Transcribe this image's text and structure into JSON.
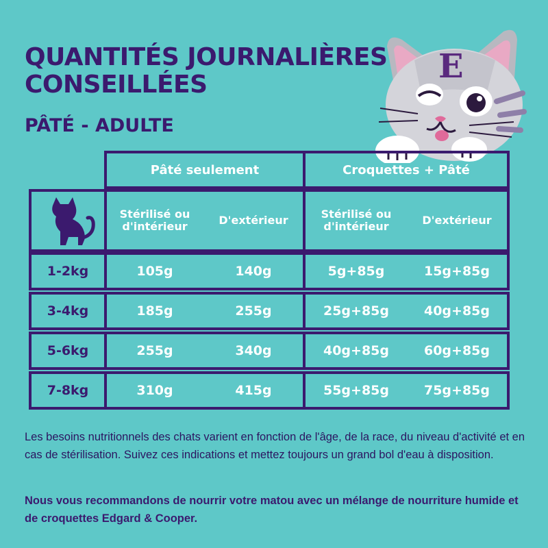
{
  "title": "QUANTITÉS JOURNALIÈRES CONSEILLÉES",
  "subtitle": "PÂTÉ - ADULTE",
  "table": {
    "group_headers": [
      "Pâté seulement",
      "Croquettes + Pâté"
    ],
    "sub_headers": [
      "Stérilisé ou d'intérieur",
      "D'extérieur",
      "Stérilisé ou d'intérieur",
      "D'extérieur"
    ],
    "rows": [
      {
        "weight": "1-2kg",
        "values": [
          "105g",
          "140g",
          "5g+85g",
          "15g+85g"
        ]
      },
      {
        "weight": "3-4kg",
        "values": [
          "185g",
          "255g",
          "25g+85g",
          "40g+85g"
        ]
      },
      {
        "weight": "5-6kg",
        "values": [
          "255g",
          "340g",
          "40g+85g",
          "60g+85g"
        ]
      },
      {
        "weight": "7-8kg",
        "values": [
          "310g",
          "415g",
          "55g+85g",
          "75g+85g"
        ]
      }
    ]
  },
  "paragraphs": {
    "info": "Les besoins nutritionnels des chats varient en fonction de l'âge, de la race, du niveau d'activité et en cas de stérilisation. Suivez ces indications et mettez toujours un grand bol d'eau à disposition.",
    "recommendation": "Nous vous recommandons de nourrir votre matou avec un mélange de nourriture humide et de croquettes Edgard & Cooper."
  },
  "icons": {
    "cat_silhouette": "cat-silhouette-icon",
    "mascot": "cat-mascot-illustration",
    "mascot_logo": "E"
  },
  "colors": {
    "background": "#5ec8c8",
    "border": "#3b1a6e",
    "header_text": "#ffffff",
    "weight_text": "#3b1a6e"
  }
}
